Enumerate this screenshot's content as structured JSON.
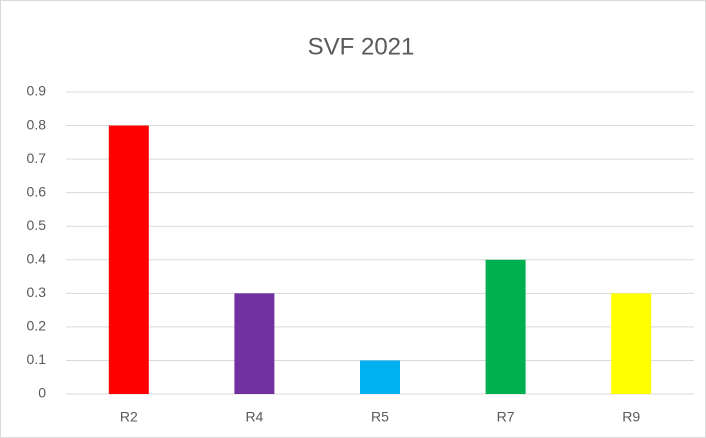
{
  "chart_data": {
    "type": "bar",
    "title": "SVF 2021",
    "categories": [
      "R2",
      "R4",
      "R5",
      "R7",
      "R9"
    ],
    "values": [
      0.8,
      0.3,
      0.1,
      0.4,
      0.3
    ],
    "colors": [
      "#ff0000",
      "#7030a0",
      "#00b0f0",
      "#00b050",
      "#ffff00"
    ],
    "ylim": [
      0,
      0.9
    ],
    "yticks": [
      0,
      0.1,
      0.2,
      0.3,
      0.4,
      0.5,
      0.6,
      0.7,
      0.8,
      0.9
    ],
    "grid": true
  }
}
